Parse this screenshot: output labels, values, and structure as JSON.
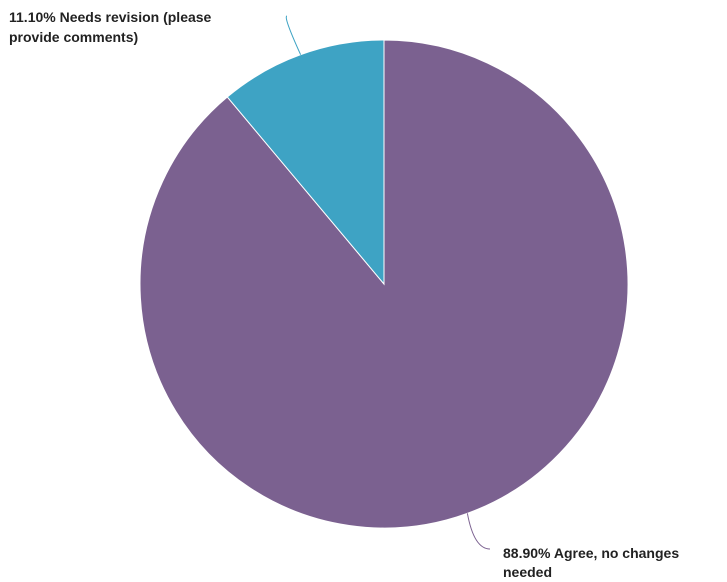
{
  "chart_data": {
    "type": "pie",
    "slices": [
      {
        "value": 88.9,
        "label_lines": [
          "88.90% Agree, no changes",
          "needed"
        ],
        "color": "#7b6190"
      },
      {
        "value": 11.1,
        "label_lines": [
          "11.10% Needs revision (please",
          "provide comments)"
        ],
        "color": "#3ea3c4"
      }
    ],
    "start_angle": "12 o'clock",
    "direction": "clockwise",
    "legend": "none"
  }
}
